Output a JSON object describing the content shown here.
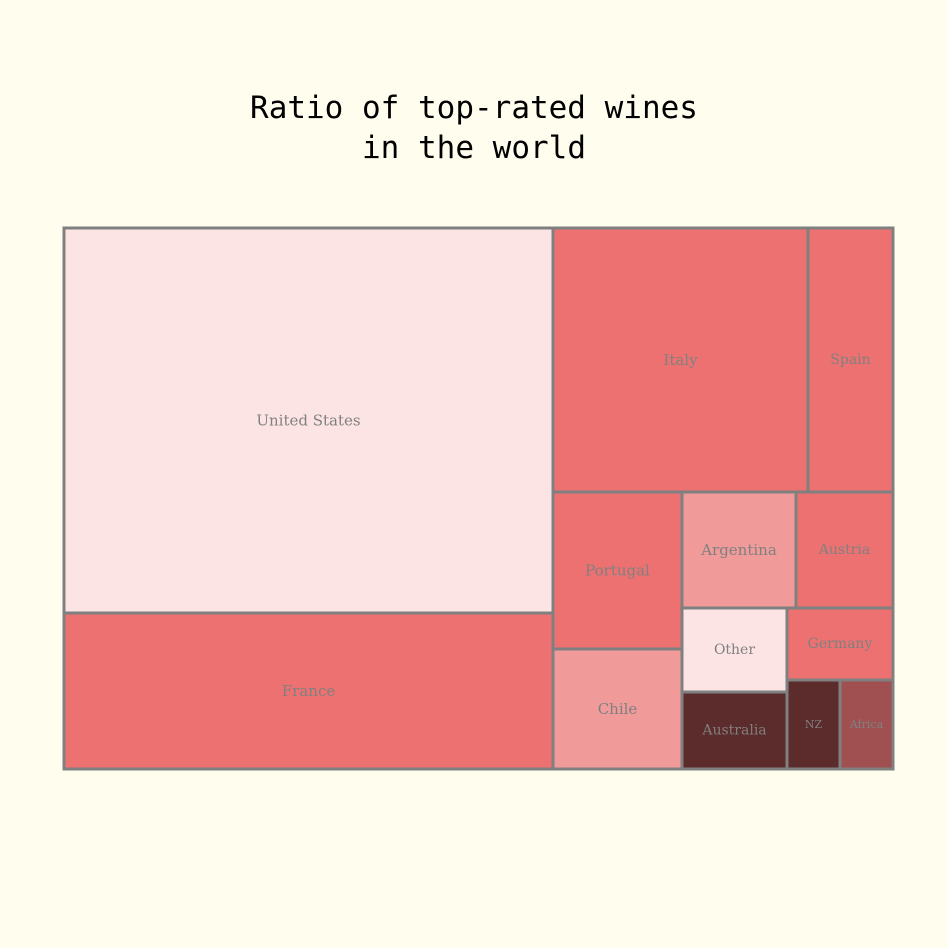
{
  "chart_data": {
    "type": "treemap",
    "title": [
      "Ratio of top-rated wines",
      "in the world"
    ],
    "cells": [
      {
        "label": "United States",
        "value": 33.6,
        "color": "#fce4e4"
      },
      {
        "label": "France",
        "value": 14.6,
        "color": "#ed7171"
      },
      {
        "label": "Italy",
        "value": 12.0,
        "color": "#ed7171"
      },
      {
        "label": "Spain",
        "value": 3.9,
        "color": "#ed7171"
      },
      {
        "label": "Portugal",
        "value": 4.3,
        "color": "#ed7171"
      },
      {
        "label": "Chile",
        "value": 2.7,
        "color": "#f09b9a"
      },
      {
        "label": "Argentina",
        "value": 2.3,
        "color": "#f09b9a"
      },
      {
        "label": "Austria",
        "value": 1.9,
        "color": "#ed7171"
      },
      {
        "label": "Other",
        "value": 1.6,
        "color": "#fce4e4"
      },
      {
        "label": "Germany",
        "value": 1.2,
        "color": "#ed7171"
      },
      {
        "label": "Australia",
        "value": 1.5,
        "color": "#5c2b2b"
      },
      {
        "label": "NZ",
        "value": 0.8,
        "color": "#5c2b2b"
      },
      {
        "label": "Africa",
        "value": 0.8,
        "color": "#a05050"
      }
    ]
  }
}
